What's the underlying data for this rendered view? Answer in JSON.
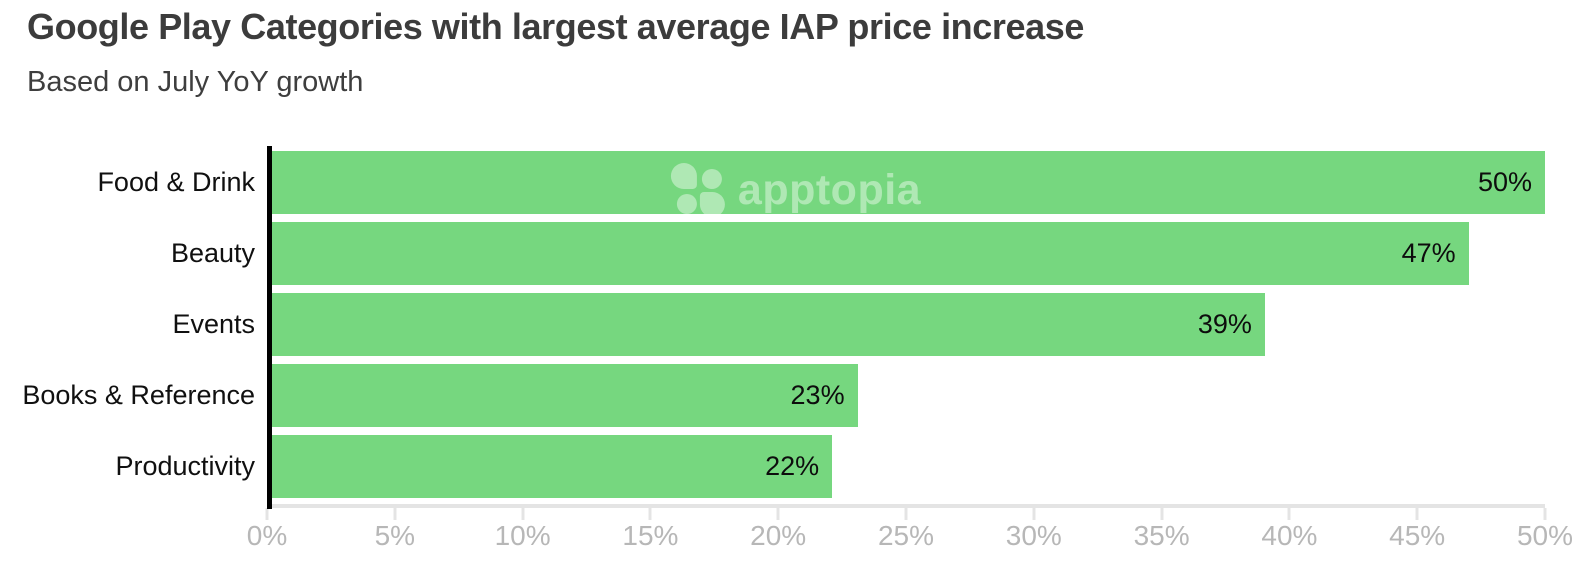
{
  "header": {
    "title": "Google Play Categories with largest average IAP price increase",
    "subtitle": "Based on July YoY growth"
  },
  "watermark": {
    "icon": "apptopia-clover-icon",
    "text": "apptopia"
  },
  "chart_data": {
    "type": "bar",
    "orientation": "horizontal",
    "title": "Google Play Categories with largest average IAP price increase",
    "subtitle": "Based on July YoY growth",
    "categories": [
      "Food & Drink",
      "Beauty",
      "Events",
      "Books & Reference",
      "Productivity"
    ],
    "values": [
      50,
      47,
      39,
      23,
      22
    ],
    "value_labels": [
      "50%",
      "47%",
      "39%",
      "23%",
      "22%"
    ],
    "xlabel": "",
    "ylabel": "",
    "xlim": [
      0,
      50
    ],
    "x_ticks": [
      "0%",
      "5%",
      "10%",
      "15%",
      "20%",
      "25%",
      "30%",
      "35%",
      "40%",
      "45%",
      "50%"
    ],
    "grid": false,
    "legend": "none",
    "bar_color": "#76d77f"
  },
  "colors": {
    "bar_green": "#76d77f",
    "watermark_overlay": "rgba(255,255,255,0.42)",
    "y_axis_line": "#000000",
    "x_axis_line": "#e4e4e4",
    "tick_label": "#b7b7b7",
    "title_text": "#3c3c3c",
    "label_text": "#101010",
    "background": "#ffffff"
  }
}
